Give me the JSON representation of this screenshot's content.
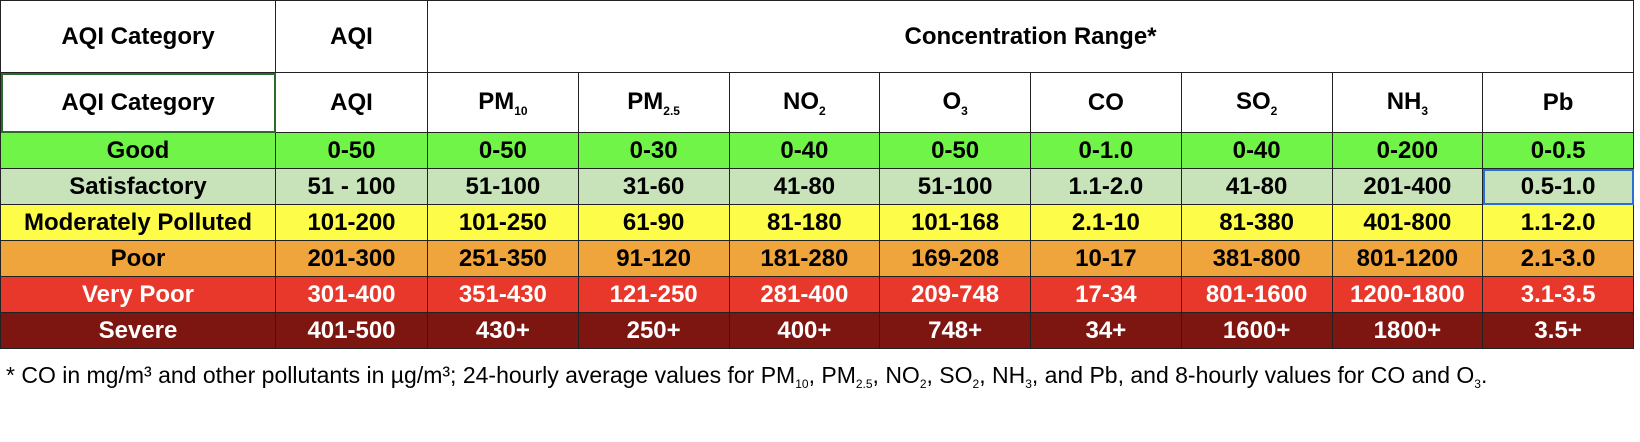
{
  "header": {
    "top": [
      "AQI Category",
      "AQI",
      "Concentration Range*"
    ],
    "columns": [
      {
        "text": "AQI Category"
      },
      {
        "text": "AQI"
      },
      {
        "text": "PM",
        "sub": "10"
      },
      {
        "text": "PM",
        "sub": "2.5"
      },
      {
        "text": "NO",
        "sub": "2"
      },
      {
        "text": "O",
        "sub": "3"
      },
      {
        "text": "CO"
      },
      {
        "text": "SO",
        "sub": "2"
      },
      {
        "text": "NH",
        "sub": "3"
      },
      {
        "text": "Pb"
      }
    ]
  },
  "table": {
    "rows": [
      [
        "Good",
        "0-50",
        "0-50",
        "0-30",
        "0-40",
        "0-50",
        "0-1.0",
        "0-40",
        "0-200",
        "0-0.5"
      ],
      [
        "Satisfactory",
        "51 - 100",
        "51-100",
        "31-60",
        "41-80",
        "51-100",
        "1.1-2.0",
        "41-80",
        "201-400",
        "0.5-1.0"
      ],
      [
        "Moderately Polluted",
        "101-200",
        "101-250",
        "61-90",
        "81-180",
        "101-168",
        "2.1-10",
        "81-380",
        "401-800",
        "1.1-2.0"
      ],
      [
        "Poor",
        "201-300",
        "251-350",
        "91-120",
        "181-280",
        "169-208",
        "10-17",
        "381-800",
        "801-1200",
        "2.1-3.0"
      ],
      [
        "Very Poor",
        "301-400",
        "351-430",
        "121-250",
        "281-400",
        "209-748",
        "17-34",
        "801-1600",
        "1200-1800",
        "3.1-3.5"
      ],
      [
        "Severe",
        "401-500",
        "430+",
        "250+",
        "400+",
        "748+",
        "34+",
        "1600+",
        "1800+",
        "3.5+"
      ]
    ]
  },
  "footnote": [
    {
      "text": "* CO in mg/m³ and other pollutants in µg/m³; 24-hourly average values for PM",
      "sub": "10"
    },
    {
      "text": ", PM",
      "sub": "2.5"
    },
    {
      "text": ", NO",
      "sub": "2"
    },
    {
      "text": ", SO",
      "sub": "2"
    },
    {
      "text": ", NH",
      "sub": "3"
    },
    {
      "text": ", and Pb, and 8-hourly values for CO and O",
      "sub": "3"
    },
    {
      "text": "."
    }
  ]
}
